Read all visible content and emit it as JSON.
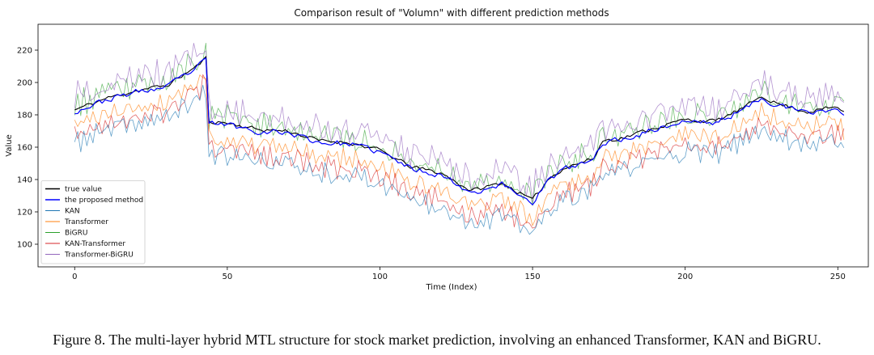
{
  "chart_data": {
    "type": "line",
    "title": "Comparison result of \"Volumn\" with different prediction methods",
    "xlabel": "Time (Index)",
    "ylabel": "Value",
    "xlim": [
      -12,
      260
    ],
    "ylim": [
      86,
      236
    ],
    "xticks": [
      0,
      50,
      100,
      150,
      200,
      250
    ],
    "yticks": [
      100,
      120,
      140,
      160,
      180,
      200,
      220
    ],
    "grid": false,
    "legend_position": "lower-left",
    "n_points": 253,
    "anchors": {
      "x": [
        0,
        10,
        20,
        30,
        40,
        43,
        44,
        50,
        60,
        70,
        80,
        90,
        100,
        110,
        120,
        130,
        140,
        150,
        155,
        160,
        170,
        173,
        180,
        190,
        200,
        210,
        220,
        225,
        230,
        240,
        250,
        252
      ],
      "y": [
        183,
        190,
        195,
        198,
        210,
        215,
        176,
        175,
        171,
        170,
        164,
        163,
        158,
        148,
        144,
        133,
        138,
        127,
        140,
        147,
        153,
        164,
        166,
        172,
        177,
        176,
        185,
        192,
        187,
        182,
        185,
        181
      ]
    },
    "series": [
      {
        "name": "true value",
        "color": "#000000",
        "offset": 0,
        "noise": 2.2,
        "seed": 11,
        "width": 1.1,
        "opacity": 1
      },
      {
        "name": "the proposed method",
        "color": "#0000ff",
        "offset": -1,
        "noise": 3.0,
        "seed": 23,
        "width": 1.2,
        "opacity": 1
      },
      {
        "name": "KAN",
        "color": "#1f77b4",
        "offset": -20,
        "noise": 11,
        "seed": 37,
        "width": 0.8,
        "opacity": 0.7
      },
      {
        "name": "Transformer",
        "color": "#ff7f0e",
        "offset": -10,
        "noise": 10,
        "seed": 41,
        "width": 0.8,
        "opacity": 0.7
      },
      {
        "name": "BiGRU",
        "color": "#2ca02c",
        "offset": 3,
        "noise": 13,
        "seed": 53,
        "width": 0.8,
        "opacity": 0.65
      },
      {
        "name": "KAN-Transformer",
        "color": "#d62728",
        "offset": -16,
        "noise": 11,
        "seed": 67,
        "width": 0.8,
        "opacity": 0.7
      },
      {
        "name": "Transformer-BiGRU",
        "color": "#9467bd",
        "offset": 8,
        "noise": 14,
        "seed": 79,
        "width": 0.8,
        "opacity": 0.7
      }
    ]
  },
  "caption": "Figure 8. The multi-layer hybrid MTL structure for stock market prediction, involving an enhanced Transformer, KAN and BiGRU."
}
